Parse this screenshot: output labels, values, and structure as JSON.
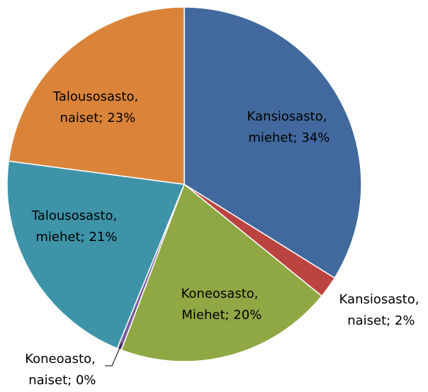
{
  "chart_data": {
    "type": "pie",
    "values": [
      34,
      2,
      20,
      0.4,
      21,
      23
    ],
    "value_labels": [
      "Kansiosasto, miehet; 34%",
      "Kansiosasto, naiset; 2%",
      "Koneosasto, Miehet; 20%",
      "Koneoasto, naiset; 0%",
      "Talousosasto, miehet; 21%",
      "Talousosasto, naiset; 23%"
    ],
    "colors": [
      "#41699d",
      "#bb4441",
      "#8fa844",
      "#7a5c9c",
      "#3e93a9",
      "#db8439"
    ]
  }
}
